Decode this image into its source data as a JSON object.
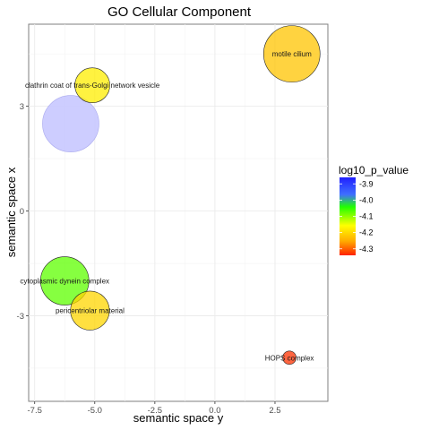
{
  "chart_data": {
    "type": "scatter",
    "title": "GO Cellular Component",
    "xlabel": "semantic space y",
    "ylabel": "semantic space x",
    "xlim": [
      -7.75,
      4.7
    ],
    "ylim": [
      -5.45,
      5.35
    ],
    "x_ticks": [
      -7.5,
      -5.0,
      -2.5,
      0.0,
      2.5
    ],
    "x_tick_labels": [
      "-7.5",
      "-5.0",
      "-2.5",
      "0.0",
      "2.5"
    ],
    "y_ticks": [
      -3,
      0,
      3
    ],
    "y_tick_labels": [
      "-3",
      "0",
      "3"
    ],
    "grid": true,
    "legend": {
      "title": "log10_p_value",
      "position": "right",
      "ticks": [
        -3.9,
        -4.0,
        -4.1,
        -4.2,
        -4.3
      ],
      "tick_labels": [
        "-3.9",
        "-4.0",
        "-4.1",
        "-4.2",
        "-4.3"
      ],
      "range": [
        -4.34,
        -3.86
      ],
      "colors": [
        "#0000ff",
        "#00ff00",
        "#ffff00",
        "#ffa500",
        "#ff0000"
      ]
    },
    "points": [
      {
        "label": "motile cilium",
        "x": 3.2,
        "y": 4.5,
        "log10_p_value": -4.22,
        "size": 4.2
      },
      {
        "label": "clathrin coat of trans-Golgi network vesicle",
        "x": -5.1,
        "y": 3.6,
        "log10_p_value": -4.17,
        "size": 2.6
      },
      {
        "label": "",
        "x": -6.0,
        "y": 2.5,
        "log10_p_value": -3.87,
        "size": 4.2
      },
      {
        "label": "cytoplasmic dynein complex",
        "x": -6.25,
        "y": -2.0,
        "log10_p_value": -4.07,
        "size": 3.6
      },
      {
        "label": "pericentriolar material",
        "x": -5.2,
        "y": -2.85,
        "log10_p_value": -4.2,
        "size": 2.9
      },
      {
        "label": "HOPS complex",
        "x": 3.1,
        "y": -4.2,
        "log10_p_value": -4.33,
        "size": 1.0
      }
    ]
  }
}
